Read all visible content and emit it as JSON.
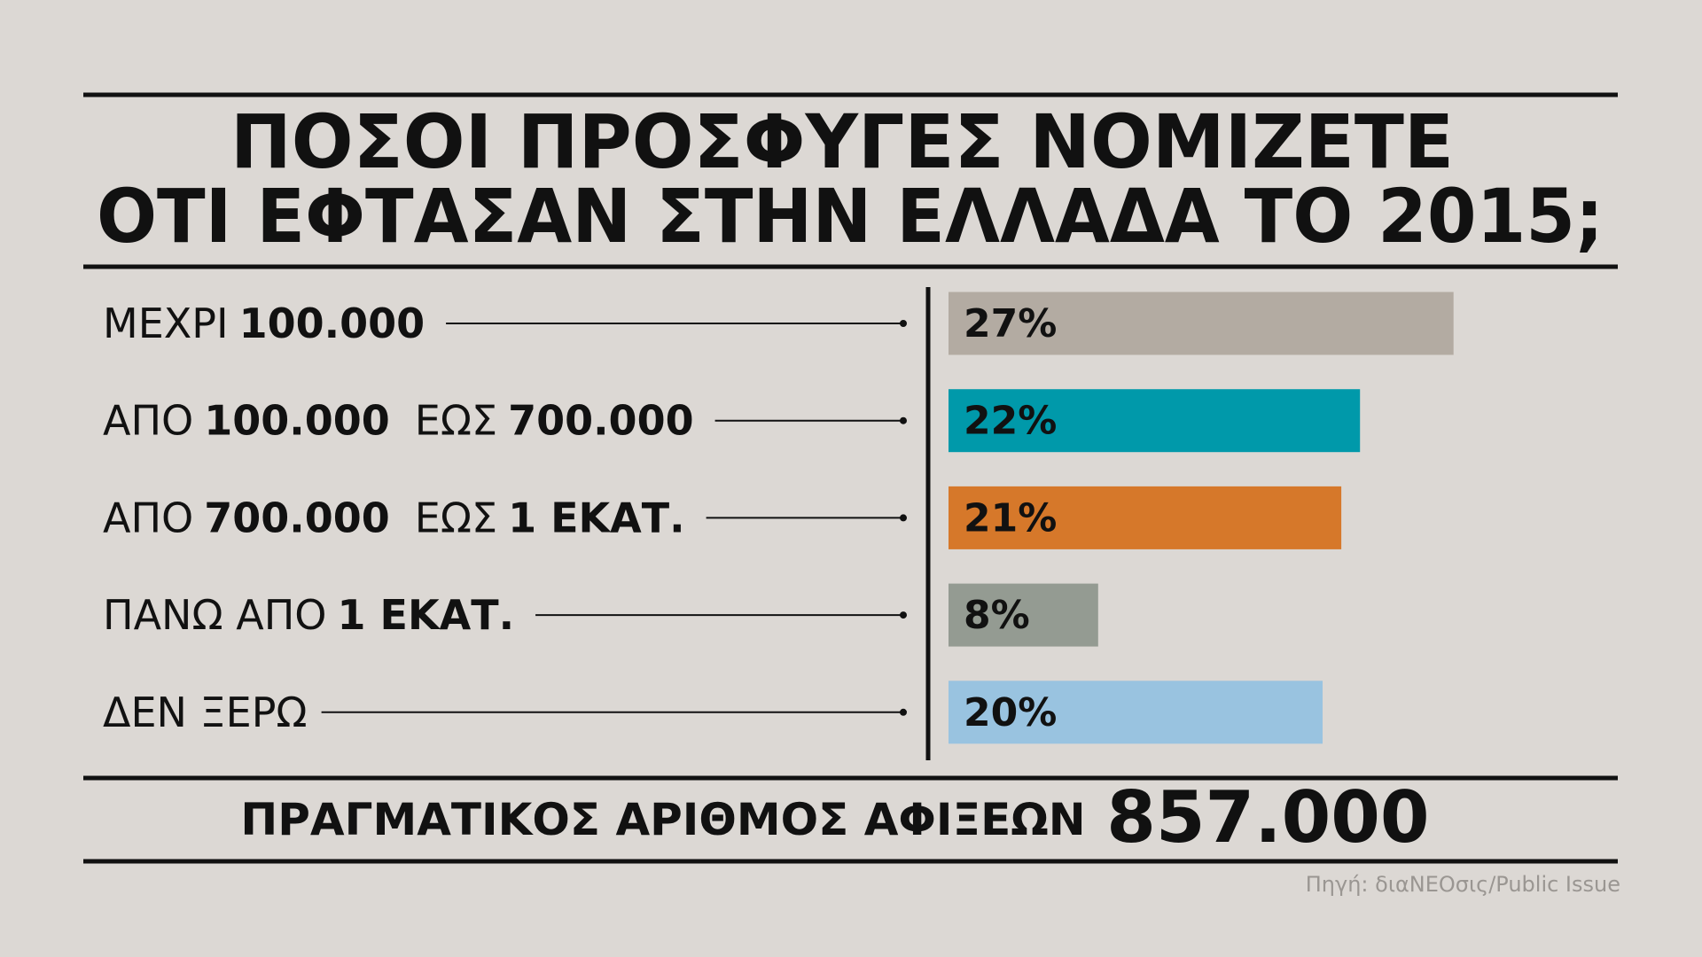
{
  "chart_data": {
    "type": "bar",
    "orientation": "horizontal",
    "title": [
      "ΠΟΣΟΙ ΠΡΟΣΦΥΓΕΣ ΝΟΜΙΖΕΤΕ",
      "ΟΤΙ ΕΦΤΑΣΑΝ ΣΤΗΝ ΕΛΛΑΔΑ ΤΟ 2015;"
    ],
    "categories": [
      [
        "ΜΕΧΡΙ",
        "100.000"
      ],
      [
        "ΑΠΟ",
        "100.000",
        "ΕΩΣ",
        "700.000"
      ],
      [
        "ΑΠΟ",
        "700.000",
        "ΕΩΣ",
        "1 ΕΚΑΤ."
      ],
      [
        "ΠΑΝΩ ΑΠΟ",
        "1 ΕΚΑΤ."
      ],
      [
        "ΔΕΝ ΞΕΡΩ"
      ]
    ],
    "values": [
      27,
      22,
      21,
      8,
      20
    ],
    "value_labels": [
      "27%",
      "22%",
      "21%",
      "8%",
      "20%"
    ],
    "colors": [
      "#b3aba2",
      "#0099aa",
      "#d6782a",
      "#949b92",
      "#99c3e0"
    ],
    "annotation": [
      "ΠΡΑΓΜΑΤΙΚΟΣ ΑΡΙΘΜΟΣ ΑΦΙΞΕΩΝ",
      "857.000"
    ],
    "source": "Πηγή: διαΝΕΟσις/Public Issue"
  }
}
